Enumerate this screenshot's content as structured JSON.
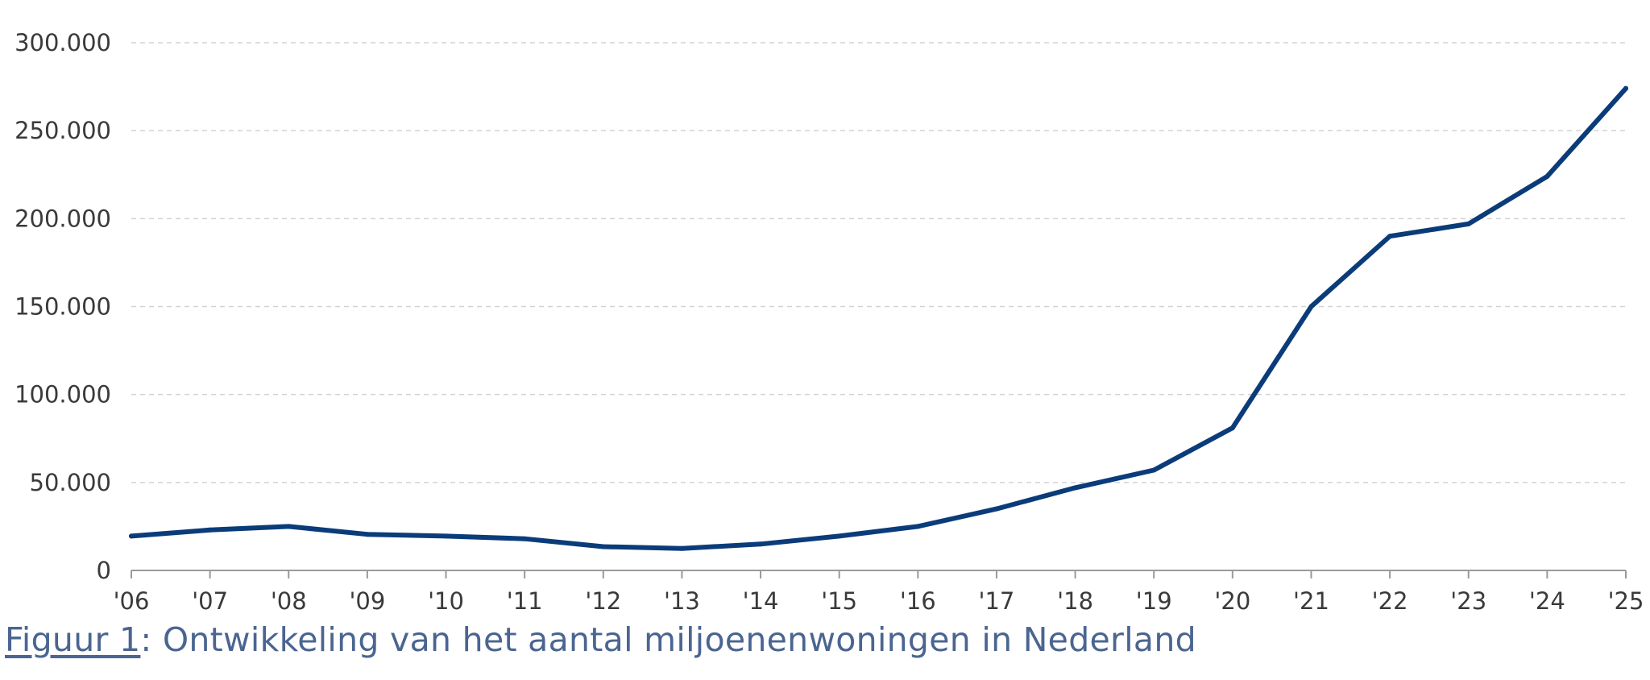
{
  "chart_data": {
    "type": "line",
    "title": "",
    "xlabel": "",
    "ylabel": "",
    "categories": [
      "'06",
      "'07",
      "'08",
      "'09",
      "'10",
      "'11",
      "'12",
      "'13",
      "'14",
      "'15",
      "'16",
      "'17",
      "'18",
      "'19",
      "'20",
      "'21",
      "'22",
      "'23",
      "'24",
      "'25"
    ],
    "series": [
      {
        "values": [
          19500,
          23000,
          25000,
          20500,
          19500,
          18000,
          13500,
          12500,
          15000,
          19500,
          25000,
          35000,
          47000,
          57000,
          81000,
          150000,
          190000,
          197000,
          224000,
          274000
        ]
      }
    ],
    "ylim": [
      0,
      300000
    ],
    "yticks": [
      0,
      50000,
      100000,
      150000,
      200000,
      250000,
      300000
    ],
    "ytick_labels": [
      "0",
      "50.000",
      "100.000",
      "150.000",
      "200.000",
      "250.000",
      "300.000"
    ],
    "grid": true,
    "line_color": "#0b3c7a",
    "grid_color": "#d2d2d2"
  },
  "caption": {
    "ref": "Figuur 1",
    "text": ": Ontwikkeling van het aantal miljoenenwoningen in Nederland"
  }
}
